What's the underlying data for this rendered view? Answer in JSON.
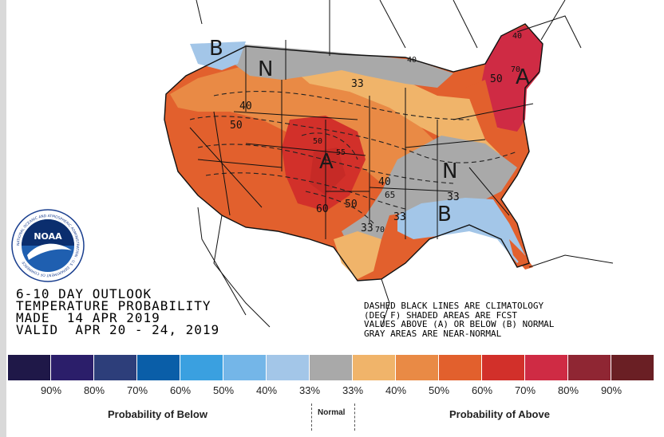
{
  "title_block": {
    "line1": "6-10 DAY OUTLOOK",
    "line2": "TEMPERATURE PROBABILITY",
    "line3": "MADE  14 APR 2019",
    "line4": "VALID  APR 20 - 24, 2019"
  },
  "notes": {
    "line1": "DASHED BLACK LINES ARE CLIMATOLOGY",
    "line2": "(DEG F) SHADED AREAS ARE FCST",
    "line3": "VALUES ABOVE (A) OR BELOW (B) NORMAL",
    "line4": "GRAY AREAS ARE NEAR-NORMAL"
  },
  "map_labels": {
    "below_nw": "B",
    "normal_north": "N",
    "above_east": "A",
    "above_central": "A",
    "normal_southeast": "N",
    "below_southeast": "B"
  },
  "contour_values": [
    "40",
    "33",
    "40",
    "50",
    "50",
    "55",
    "40",
    "65",
    "60",
    "50",
    "33",
    "70",
    "33",
    "33",
    "50",
    "70",
    "40"
  ],
  "legend": {
    "colors": [
      "#1f1848",
      "#2b1e6a",
      "#2d3e7a",
      "#0a5ea8",
      "#3aa0e0",
      "#74b6e8",
      "#a3c6e8",
      "#a9a9a9",
      "#f0b46a",
      "#e98a45",
      "#e2602d",
      "#d2302a",
      "#cf2b44",
      "#8f2633",
      "#6a1f24"
    ],
    "ticks": [
      "90%",
      "80%",
      "70%",
      "60%",
      "50%",
      "40%",
      "33%",
      "33%",
      "40%",
      "50%",
      "60%",
      "70%",
      "80%",
      "90%"
    ],
    "below_caption": "Probability of Below",
    "normal_caption": "Normal",
    "above_caption": "Probability of Above"
  },
  "logo": {
    "text": "NOAA",
    "ring_text": "NATIONAL OCEANIC AND ATMOSPHERIC ADMINISTRATION · U.S. DEPARTMENT OF COMMERCE"
  },
  "region_colors": {
    "above_33": "#f0b46a",
    "above_40": "#e98a45",
    "above_50": "#e2602d",
    "above_60": "#cc2f29",
    "above_70": "#cf2b44",
    "normal": "#a9a9a9",
    "below_33": "#a3c6e8",
    "below_40": "#74b6e8"
  }
}
